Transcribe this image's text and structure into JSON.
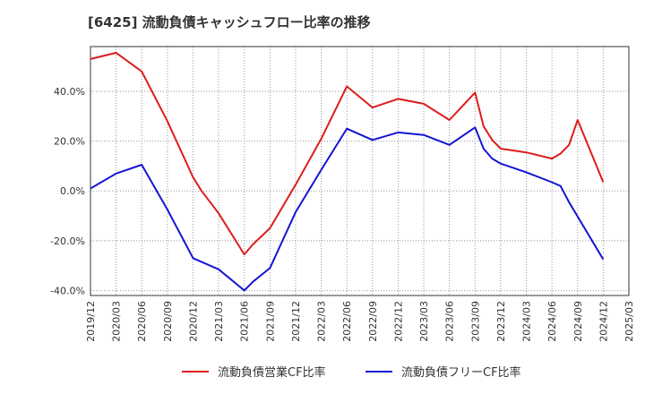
{
  "title": "[6425]  流動負債キャッシュフロー比率の推移",
  "chart_data": {
    "type": "line",
    "title": "[6425]  流動負債キャッシュフロー比率の推移",
    "xlabel": "",
    "ylabel": "",
    "ylim": [
      -42,
      58
    ],
    "yticks": [
      -40,
      -20,
      0,
      20,
      40
    ],
    "ytick_labels": [
      "-40.0%",
      "-20.0%",
      "0.0%",
      "20.0%",
      "40.0%"
    ],
    "xticks": [
      "2019/12",
      "2020/03",
      "2020/06",
      "2020/09",
      "2020/12",
      "2021/03",
      "2021/06",
      "2021/09",
      "2021/12",
      "2022/03",
      "2022/06",
      "2022/09",
      "2022/12",
      "2023/03",
      "2023/06",
      "2023/09",
      "2023/12",
      "2024/03",
      "2024/06",
      "2024/09",
      "2024/12",
      "2025/03"
    ],
    "grid": true,
    "legend_position": "bottom",
    "series": [
      {
        "name": "流動負債営業CF比率",
        "color": "#dd1c1c",
        "points": [
          [
            "2019/12",
            53.0
          ],
          [
            "2020/03",
            55.5
          ],
          [
            "2020/06",
            48.0
          ],
          [
            "2020/09",
            28.0
          ],
          [
            "2020/12",
            5.5
          ],
          [
            "2021/01",
            0.0
          ],
          [
            "2021/03",
            -9.0
          ],
          [
            "2021/06",
            -25.5
          ],
          [
            "2021/07",
            -21.5
          ],
          [
            "2021/09",
            -15.0
          ],
          [
            "2021/12",
            2.5
          ],
          [
            "2022/03",
            21.0
          ],
          [
            "2022/06",
            42.0
          ],
          [
            "2022/09",
            33.5
          ],
          [
            "2022/12",
            37.0
          ],
          [
            "2023/03",
            35.0
          ],
          [
            "2023/06",
            28.5
          ],
          [
            "2023/09",
            39.5
          ],
          [
            "2023/10",
            26.0
          ],
          [
            "2023/11",
            20.5
          ],
          [
            "2023/12",
            17.0
          ],
          [
            "2024/03",
            15.5
          ],
          [
            "2024/06",
            13.0
          ],
          [
            "2024/07",
            15.0
          ],
          [
            "2024/08",
            18.5
          ],
          [
            "2024/09",
            28.5
          ],
          [
            "2024/12",
            3.5
          ]
        ]
      },
      {
        "name": "流動負債フリーCF比率",
        "color": "#1515d4",
        "points": [
          [
            "2019/12",
            1.0
          ],
          [
            "2020/03",
            7.0
          ],
          [
            "2020/06",
            10.5
          ],
          [
            "2020/09",
            -7.5
          ],
          [
            "2020/12",
            -27.0
          ],
          [
            "2021/03",
            -31.5
          ],
          [
            "2021/06",
            -40.0
          ],
          [
            "2021/07",
            -36.5
          ],
          [
            "2021/09",
            -31.0
          ],
          [
            "2021/12",
            -8.5
          ],
          [
            "2022/03",
            8.5
          ],
          [
            "2022/06",
            25.0
          ],
          [
            "2022/09",
            20.5
          ],
          [
            "2022/12",
            23.5
          ],
          [
            "2023/03",
            22.5
          ],
          [
            "2023/06",
            18.5
          ],
          [
            "2023/09",
            25.5
          ],
          [
            "2023/10",
            17.0
          ],
          [
            "2023/11",
            13.0
          ],
          [
            "2023/12",
            11.0
          ],
          [
            "2024/03",
            7.5
          ],
          [
            "2024/06",
            3.5
          ],
          [
            "2024/07",
            2.0
          ],
          [
            "2024/08",
            -4.5
          ],
          [
            "2024/12",
            -27.5
          ]
        ]
      }
    ]
  }
}
